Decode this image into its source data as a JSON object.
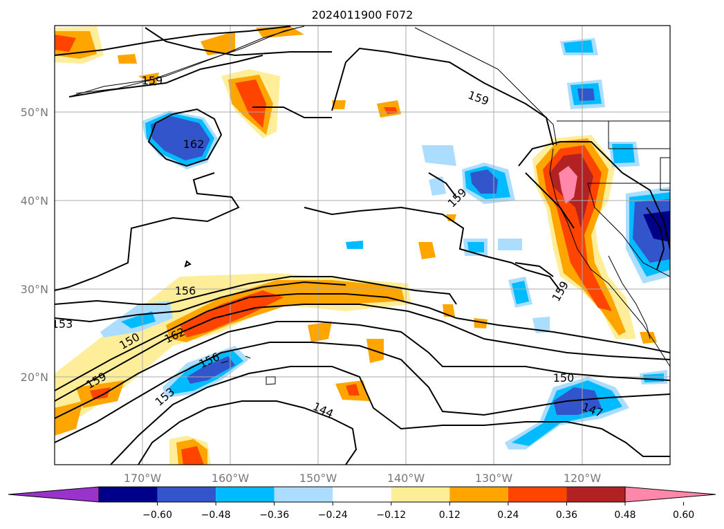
{
  "map": {
    "title": "2024011900 F072",
    "lat_labels": [
      "50°N",
      "40°N",
      "30°N",
      "20°N"
    ],
    "lon_labels": [
      "170°W",
      "160°W",
      "150°W",
      "140°W",
      "130°W",
      "120°W"
    ],
    "contour_labels": [
      "159",
      "162",
      "159",
      "159",
      "156",
      "153",
      "150",
      "162",
      "156",
      "159",
      "153",
      "144",
      "159",
      "150",
      "147"
    ]
  },
  "colorbar": {
    "ticks": [
      "−0.60",
      "−0.48",
      "−0.36",
      "−0.24",
      "−0.12",
      "0.12",
      "0.24",
      "0.36",
      "0.48",
      "0.60"
    ],
    "colors": [
      "#9933cc",
      "#00008b",
      "#3355cc",
      "#00bbff",
      "#aaddff",
      "#ffffff",
      "#ffee99",
      "#ffa500",
      "#ff4400",
      "#b22222",
      "#ff88aa"
    ]
  }
}
